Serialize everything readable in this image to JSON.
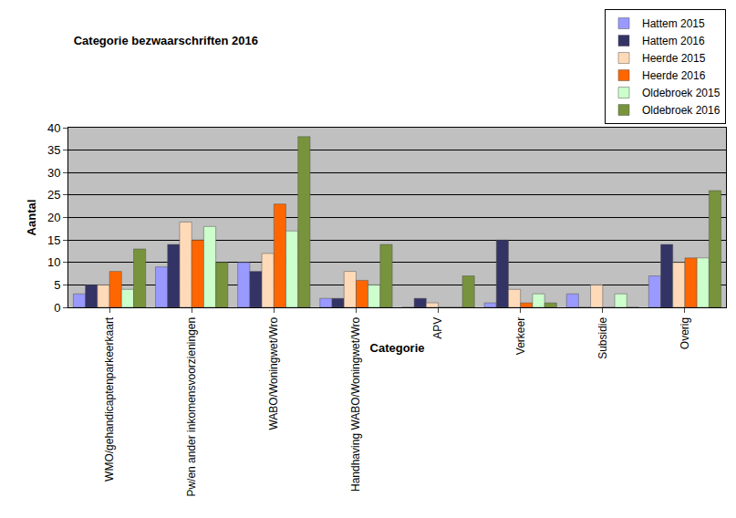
{
  "chart_data": {
    "type": "bar",
    "title": "Categorie bezwaarschriften 2016",
    "x_label": "Categorie",
    "y_label": "Aantal",
    "categories": [
      "WMO/gehandicaptenparkeerkaart",
      "Pw/en ander inkomensvoorzieningen",
      "WABO/Woningwet/Wro",
      "Handhaving WABO/Woningwet/Wro",
      "APV",
      "Verkeer",
      "Subsidie",
      "Overig"
    ],
    "series": [
      {
        "name": "Hattem 2015",
        "color": "#9999ff",
        "values": [
          3,
          9,
          10,
          2,
          0,
          1,
          3,
          7
        ]
      },
      {
        "name": "Hattem 2016",
        "color": "#333366",
        "values": [
          5,
          14,
          8,
          2,
          2,
          15,
          0,
          14
        ]
      },
      {
        "name": "Heerde 2015",
        "color": "#ffdab9",
        "values": [
          5,
          19,
          12,
          8,
          1,
          4,
          5,
          10
        ]
      },
      {
        "name": "Heerde 2016",
        "color": "#ff6600",
        "values": [
          8,
          15,
          23,
          6,
          0,
          1,
          0,
          11
        ]
      },
      {
        "name": "Oldebroek 2015",
        "color": "#ccffcc",
        "values": [
          4,
          18,
          17,
          5,
          0,
          3,
          3,
          11
        ]
      },
      {
        "name": "Oldebroek 2016",
        "color": "#77933c",
        "values": [
          13,
          10,
          38,
          14,
          7,
          1,
          0,
          26
        ]
      }
    ],
    "ylim": [
      0,
      40
    ],
    "yticks": [
      0,
      5,
      10,
      15,
      20,
      25,
      30,
      35,
      40
    ],
    "grid": true,
    "legend": "top-right"
  }
}
